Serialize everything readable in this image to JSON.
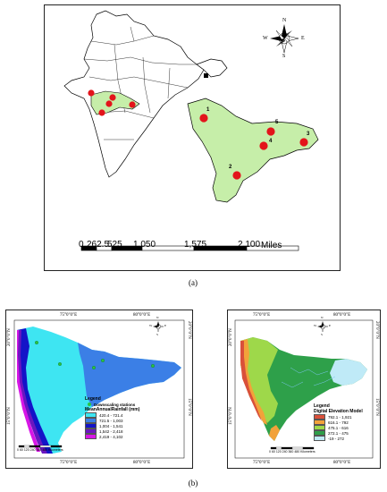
{
  "panel_a": {
    "label": "(a)",
    "compass": {
      "n": "N",
      "s": "S",
      "e": "E",
      "w": "W"
    },
    "stations": [
      "1",
      "2",
      "3",
      "4",
      "5"
    ],
    "scale_bar": {
      "ticks": [
        "0",
        "262.5",
        "525",
        "1,050",
        "1,575",
        "2,100"
      ],
      "unit": "Miles"
    }
  },
  "panel_b": {
    "label": "(b)",
    "left_map": {
      "top_ticks": [
        "75°0\"0\"E",
        "80°0\"0\"E"
      ],
      "bottom_ticks": [
        "75°0\"0\"E",
        "80°0\"0\"E"
      ],
      "left_ticks": [
        "20°0\"0\"N",
        "15°0\"0\"N"
      ],
      "right_ticks": [
        "20°0\"0\"N",
        "15°0\"0\"N"
      ],
      "legend_title": "Legend",
      "station_label": "Downscaling stations",
      "rain_title": "MeanAnnualRainfall (mm)",
      "classes": [
        {
          "label": "420.4 - 721.4",
          "color": "#3ee5f2"
        },
        {
          "label": "721.5 - 1,003",
          "color": "#3b7fe6"
        },
        {
          "label": "1,004 - 1,541",
          "color": "#1414c8"
        },
        {
          "label": "1,542 - 2,418",
          "color": "#6a16c0"
        },
        {
          "label": "2,419 - 4,102",
          "color": "#d816e6"
        }
      ],
      "scale_ticks": [
        "0",
        "60",
        "120",
        "240",
        "360",
        "480"
      ],
      "scale_unit": "Kilometers",
      "compass": {
        "n": "N",
        "s": "S",
        "e": "E",
        "w": "W"
      }
    },
    "right_map": {
      "top_ticks": [
        "75°0\"0\"E",
        "80°0\"0\"E"
      ],
      "bottom_ticks": [
        "75°0\"0\"E",
        "80°0\"0\"E"
      ],
      "left_ticks": [
        "20°0\"0\"N",
        "15°0\"0\"N"
      ],
      "right_ticks": [
        "20°0\"0\"N",
        "15°0\"0\"N"
      ],
      "legend_title": "Legend",
      "dem_title": "Digital Elevation Model",
      "classes": [
        {
          "label": "792.1 - 1,921",
          "color": "#d9503a"
        },
        {
          "label": "616.1 - 792",
          "color": "#f2a23a"
        },
        {
          "label": "475.1 - 616",
          "color": "#9ed84a"
        },
        {
          "label": "272.1 - 475",
          "color": "#2ea04a"
        },
        {
          "label": "-19 - 272",
          "color": "#bfeaf7"
        }
      ],
      "scale_ticks": [
        "0",
        "60",
        "120",
        "240",
        "360",
        "480"
      ],
      "scale_unit": "Kilometers",
      "compass": {
        "n": "N",
        "s": "S",
        "e": "E",
        "w": "W"
      }
    }
  }
}
